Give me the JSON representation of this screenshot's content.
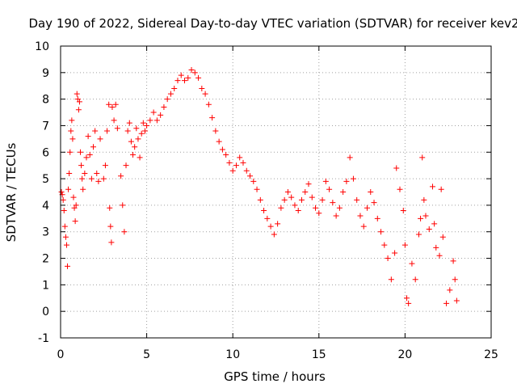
{
  "chart_data": {
    "type": "scatter",
    "title": "Day 190 of 2022, Sidereal Day-to-day VTEC variation (SDTVAR) for receiver kev2",
    "xlabel": "GPS time / hours",
    "ylabel": "SDTVAR / TECUs",
    "xlim": [
      0,
      25
    ],
    "ylim": [
      -1,
      10
    ],
    "xticks": [
      0,
      5,
      10,
      15,
      20,
      25
    ],
    "yticks": [
      -1,
      0,
      1,
      2,
      3,
      4,
      5,
      6,
      7,
      8,
      9,
      10
    ],
    "grid": true,
    "marker": "+",
    "series_color": "#ff0000",
    "series": [
      {
        "name": "SDTVAR",
        "points": [
          [
            0.05,
            4.5
          ],
          [
            0.1,
            4.4
          ],
          [
            0.15,
            4.2
          ],
          [
            0.2,
            3.8
          ],
          [
            0.25,
            3.2
          ],
          [
            0.3,
            2.8
          ],
          [
            0.35,
            2.5
          ],
          [
            0.4,
            1.7
          ],
          [
            0.45,
            4.6
          ],
          [
            0.5,
            5.2
          ],
          [
            0.55,
            6.0
          ],
          [
            0.6,
            6.8
          ],
          [
            0.65,
            7.2
          ],
          [
            0.7,
            6.5
          ],
          [
            0.75,
            4.3
          ],
          [
            0.8,
            3.9
          ],
          [
            0.85,
            3.4
          ],
          [
            0.9,
            4.0
          ],
          [
            0.95,
            8.2
          ],
          [
            1.0,
            8.0
          ],
          [
            1.05,
            7.6
          ],
          [
            1.1,
            7.9
          ],
          [
            1.15,
            6.0
          ],
          [
            1.2,
            5.5
          ],
          [
            1.25,
            5.0
          ],
          [
            1.3,
            4.6
          ],
          [
            1.4,
            5.2
          ],
          [
            1.5,
            5.8
          ],
          [
            1.6,
            6.6
          ],
          [
            1.7,
            5.9
          ],
          [
            1.8,
            5.0
          ],
          [
            1.9,
            6.2
          ],
          [
            2.0,
            6.8
          ],
          [
            2.1,
            5.2
          ],
          [
            2.2,
            4.9
          ],
          [
            2.3,
            6.5
          ],
          [
            2.5,
            5.0
          ],
          [
            2.6,
            5.5
          ],
          [
            2.7,
            6.8
          ],
          [
            2.8,
            7.8
          ],
          [
            2.85,
            3.9
          ],
          [
            2.9,
            3.2
          ],
          [
            2.95,
            2.6
          ],
          [
            3.0,
            7.7
          ],
          [
            3.1,
            7.2
          ],
          [
            3.2,
            7.8
          ],
          [
            3.3,
            6.9
          ],
          [
            3.5,
            5.1
          ],
          [
            3.6,
            4.0
          ],
          [
            3.7,
            3.0
          ],
          [
            3.8,
            5.5
          ],
          [
            3.9,
            6.8
          ],
          [
            4.0,
            7.1
          ],
          [
            4.1,
            6.4
          ],
          [
            4.2,
            5.9
          ],
          [
            4.3,
            6.2
          ],
          [
            4.4,
            6.9
          ],
          [
            4.5,
            6.5
          ],
          [
            4.6,
            5.8
          ],
          [
            4.7,
            6.7
          ],
          [
            4.8,
            7.1
          ],
          [
            4.9,
            6.8
          ],
          [
            5.0,
            7.0
          ],
          [
            5.2,
            7.2
          ],
          [
            5.4,
            7.5
          ],
          [
            5.6,
            7.2
          ],
          [
            5.8,
            7.4
          ],
          [
            6.0,
            7.7
          ],
          [
            6.2,
            8.0
          ],
          [
            6.4,
            8.2
          ],
          [
            6.6,
            8.4
          ],
          [
            6.8,
            8.7
          ],
          [
            7.0,
            8.9
          ],
          [
            7.2,
            8.7
          ],
          [
            7.4,
            8.8
          ],
          [
            7.6,
            9.1
          ],
          [
            7.8,
            9.0
          ],
          [
            8.0,
            8.8
          ],
          [
            8.2,
            8.4
          ],
          [
            8.4,
            8.2
          ],
          [
            8.6,
            7.8
          ],
          [
            8.8,
            7.3
          ],
          [
            9.0,
            6.8
          ],
          [
            9.2,
            6.4
          ],
          [
            9.4,
            6.1
          ],
          [
            9.6,
            5.9
          ],
          [
            9.8,
            5.6
          ],
          [
            10.0,
            5.3
          ],
          [
            10.2,
            5.5
          ],
          [
            10.4,
            5.8
          ],
          [
            10.6,
            5.6
          ],
          [
            10.8,
            5.3
          ],
          [
            11.0,
            5.1
          ],
          [
            11.2,
            4.9
          ],
          [
            11.4,
            4.6
          ],
          [
            11.6,
            4.2
          ],
          [
            11.8,
            3.8
          ],
          [
            12.0,
            3.5
          ],
          [
            12.2,
            3.2
          ],
          [
            12.4,
            2.9
          ],
          [
            12.6,
            3.3
          ],
          [
            12.8,
            3.9
          ],
          [
            13.0,
            4.2
          ],
          [
            13.2,
            4.5
          ],
          [
            13.4,
            4.3
          ],
          [
            13.6,
            4.0
          ],
          [
            13.8,
            3.8
          ],
          [
            14.0,
            4.2
          ],
          [
            14.2,
            4.5
          ],
          [
            14.4,
            4.8
          ],
          [
            14.6,
            4.3
          ],
          [
            14.8,
            3.9
          ],
          [
            15.0,
            3.7
          ],
          [
            15.2,
            4.2
          ],
          [
            15.4,
            4.9
          ],
          [
            15.6,
            4.6
          ],
          [
            15.8,
            4.1
          ],
          [
            16.0,
            3.6
          ],
          [
            16.2,
            3.9
          ],
          [
            16.4,
            4.5
          ],
          [
            16.6,
            4.9
          ],
          [
            16.8,
            5.8
          ],
          [
            17.0,
            5.0
          ],
          [
            17.2,
            4.2
          ],
          [
            17.4,
            3.6
          ],
          [
            17.6,
            3.2
          ],
          [
            17.8,
            3.9
          ],
          [
            18.0,
            4.5
          ],
          [
            18.2,
            4.1
          ],
          [
            18.4,
            3.5
          ],
          [
            18.6,
            3.0
          ],
          [
            18.8,
            2.5
          ],
          [
            19.0,
            2.0
          ],
          [
            19.2,
            1.2
          ],
          [
            19.4,
            2.2
          ],
          [
            19.5,
            5.4
          ],
          [
            19.7,
            4.6
          ],
          [
            19.9,
            3.8
          ],
          [
            20.0,
            2.5
          ],
          [
            20.1,
            0.5
          ],
          [
            20.2,
            0.3
          ],
          [
            20.4,
            1.8
          ],
          [
            20.6,
            1.2
          ],
          [
            20.8,
            2.9
          ],
          [
            20.9,
            3.5
          ],
          [
            21.0,
            5.8
          ],
          [
            21.1,
            4.2
          ],
          [
            21.2,
            3.6
          ],
          [
            21.4,
            3.1
          ],
          [
            21.6,
            4.7
          ],
          [
            21.7,
            3.3
          ],
          [
            21.8,
            2.4
          ],
          [
            22.0,
            2.1
          ],
          [
            22.1,
            4.6
          ],
          [
            22.2,
            2.8
          ],
          [
            22.4,
            0.3
          ],
          [
            22.6,
            0.8
          ],
          [
            22.8,
            1.9
          ],
          [
            22.9,
            1.2
          ],
          [
            23.0,
            0.4
          ]
        ]
      }
    ]
  }
}
